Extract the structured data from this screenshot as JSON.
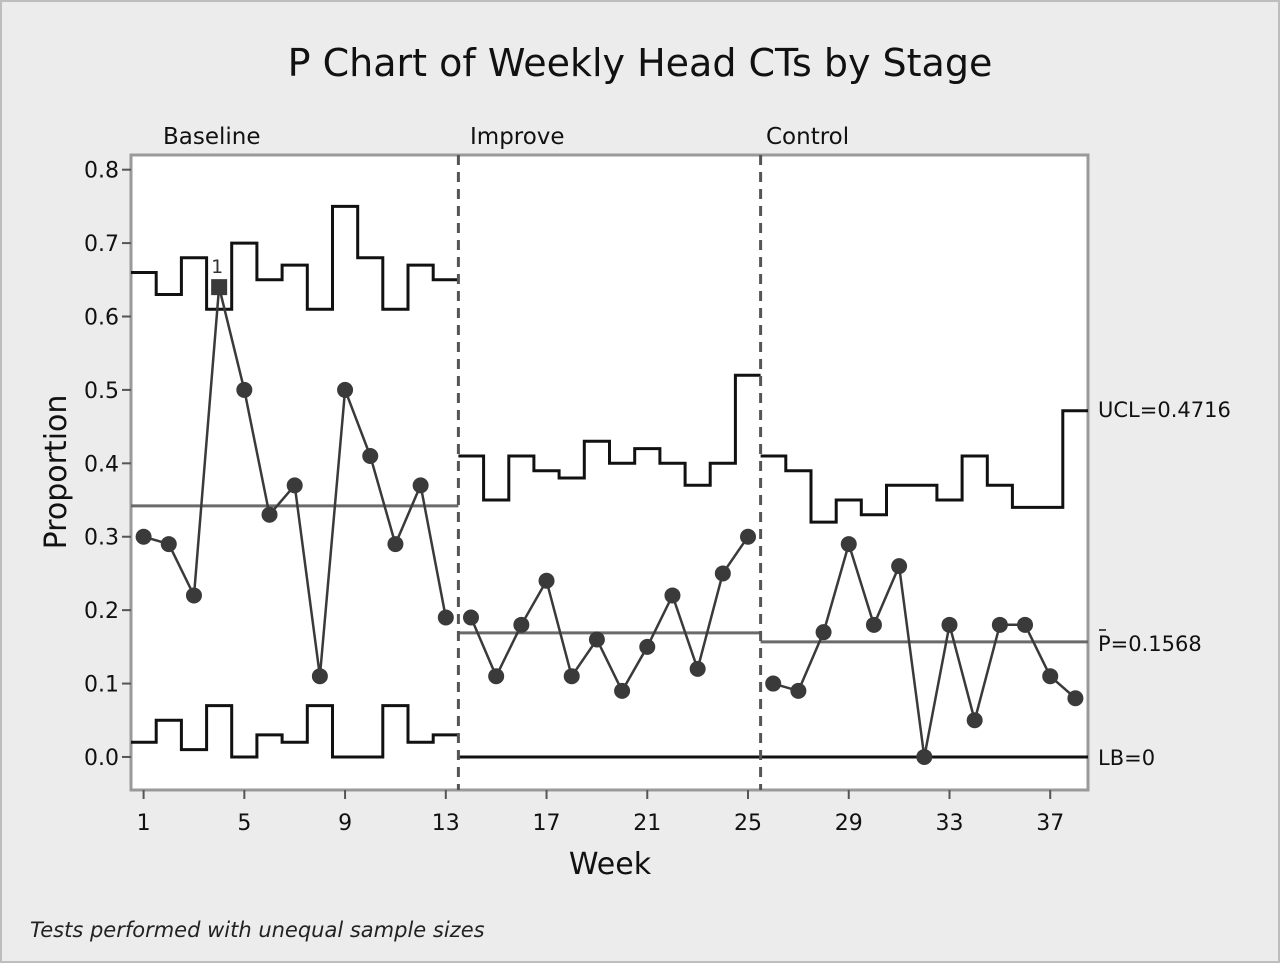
{
  "chart_data": {
    "type": "line",
    "title": "P Chart of Weekly Head CTs by Stage",
    "xlabel": "Week",
    "ylabel": "Proportion",
    "footnote": "Tests performed with unequal sample sizes",
    "xlim": [
      0.5,
      38.5
    ],
    "ylim": [
      -0.045,
      0.82
    ],
    "x_ticks": [
      1,
      5,
      9,
      13,
      17,
      21,
      25,
      29,
      33,
      37
    ],
    "y_ticks": [
      0.0,
      0.1,
      0.2,
      0.3,
      0.4,
      0.5,
      0.6,
      0.7,
      0.8
    ],
    "y_tick_labels": [
      "0.0",
      "0.1",
      "0.2",
      "0.3",
      "0.4",
      "0.5",
      "0.6",
      "0.7",
      "0.8"
    ],
    "grid": false,
    "stages": [
      {
        "name": "Baseline",
        "start": 1,
        "end": 13,
        "center": 0.342
      },
      {
        "name": "Improve",
        "start": 14,
        "end": 25,
        "center": 0.169
      },
      {
        "name": "Control",
        "start": 26,
        "end": 38,
        "center": 0.1568
      }
    ],
    "stage_dividers": [
      13.5,
      25.5
    ],
    "proportion": {
      "x": [
        1,
        2,
        3,
        4,
        5,
        6,
        7,
        8,
        9,
        10,
        11,
        12,
        13,
        14,
        15,
        16,
        17,
        18,
        19,
        20,
        21,
        22,
        23,
        24,
        25,
        26,
        27,
        28,
        29,
        30,
        31,
        32,
        33,
        34,
        35,
        36,
        37,
        38
      ],
      "y": [
        0.3,
        0.29,
        0.22,
        0.64,
        0.5,
        0.33,
        0.37,
        0.11,
        0.5,
        0.41,
        0.29,
        0.37,
        0.19,
        0.19,
        0.11,
        0.18,
        0.24,
        0.11,
        0.16,
        0.09,
        0.15,
        0.22,
        0.12,
        0.25,
        0.3,
        0.1,
        0.09,
        0.17,
        0.29,
        0.18,
        0.26,
        0.0,
        0.18,
        0.05,
        0.18,
        0.18,
        0.11,
        0.08
      ]
    },
    "flagged_points": [
      {
        "x": 4,
        "label": "1"
      }
    ],
    "ucl": [
      0.66,
      0.63,
      0.68,
      0.61,
      0.7,
      0.65,
      0.67,
      0.61,
      0.75,
      0.68,
      0.61,
      0.67,
      0.65,
      0.41,
      0.35,
      0.41,
      0.39,
      0.38,
      0.43,
      0.4,
      0.42,
      0.4,
      0.37,
      0.4,
      0.52,
      0.41,
      0.39,
      0.32,
      0.35,
      0.33,
      0.37,
      0.37,
      0.35,
      0.41,
      0.37,
      0.34,
      0.34,
      0.4716
    ],
    "lcl": [
      0.02,
      0.05,
      0.01,
      0.07,
      0.0,
      0.03,
      0.02,
      0.07,
      0.0,
      0.0,
      0.07,
      0.02,
      0.03,
      0,
      0,
      0,
      0,
      0,
      0,
      0,
      0,
      0,
      0,
      0,
      0,
      0,
      0,
      0,
      0,
      0,
      0,
      0,
      0,
      0,
      0,
      0,
      0,
      0
    ],
    "ref_labels": {
      "ucl": "UCL=0.4716",
      "p_bar": "P=0.1568",
      "lb": "LB=0"
    },
    "colors": {
      "points": "#3a3a3a",
      "center_line": "#6a6a6a",
      "limits": "#111111",
      "background": "#ececec",
      "plot_area": "#ffffff"
    }
  }
}
